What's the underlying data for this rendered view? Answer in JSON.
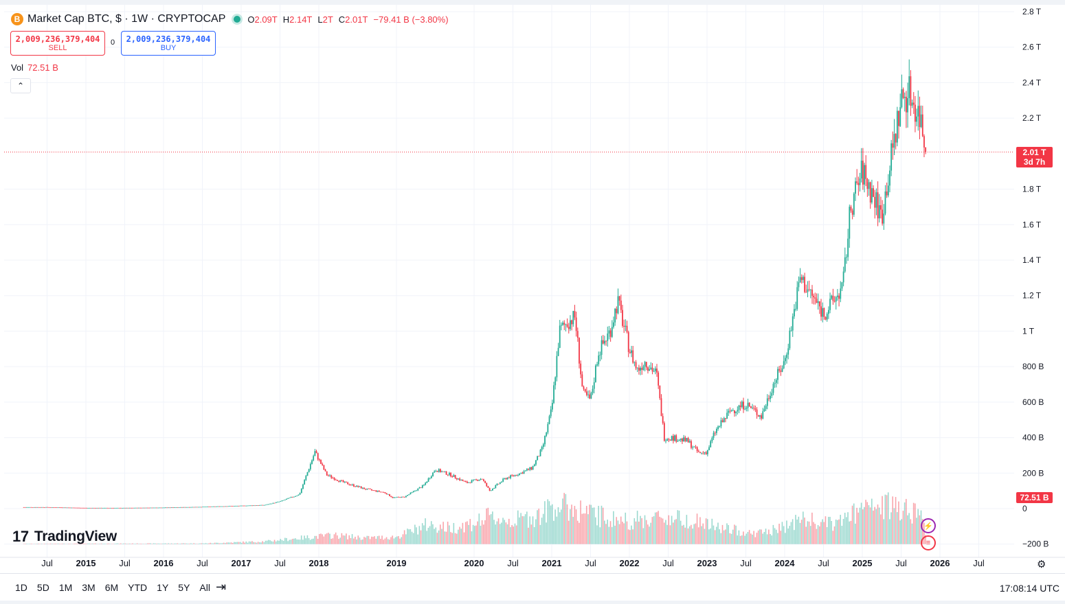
{
  "header": {
    "symbol": "Market Cap BTC, $ · 1W · CRYPTOCAP",
    "coin_glyph": "B",
    "ohlc": [
      {
        "k": "O",
        "v": "2.09T"
      },
      {
        "k": "H",
        "v": "2.14T"
      },
      {
        "k": "L",
        "v": "2T"
      },
      {
        "k": "C",
        "v": "2.01T"
      }
    ],
    "change": "−79.41 B (−3.80%)"
  },
  "trade": {
    "sell_price": "2,009,236,379,404",
    "sell_label": "SELL",
    "spread": "0",
    "buy_price": "2,009,236,379,404",
    "buy_label": "BUY"
  },
  "volume": {
    "label": "Vol",
    "value": "72.51 B"
  },
  "collapse_glyph": "⌃",
  "logo": {
    "mark": "17",
    "text": "TradingView"
  },
  "toolbar": {
    "ranges": [
      "1D",
      "5D",
      "1M",
      "3M",
      "6M",
      "YTD",
      "1Y",
      "5Y",
      "All"
    ],
    "calendar_glyph": "⇥",
    "time": "17:08:14 UTC",
    "settings_glyph": "⚙"
  },
  "price_tag": {
    "value": "2.01 T",
    "countdown": "3d 7h"
  },
  "volume_tag": "72.51 B",
  "colors": {
    "up": "#22ab94",
    "down": "#f23645",
    "grid": "#f0f3fa",
    "text": "#131722"
  },
  "chart_data": {
    "type": "candlestick",
    "interval": "1W",
    "y_axis_ticks": [
      "2.8 T",
      "2.6 T",
      "2.4 T",
      "2.2 T",
      "1.8 T",
      "1.6 T",
      "1.4 T",
      "1.2 T",
      "1 T",
      "800 B",
      "600 B",
      "400 B",
      "200 B",
      "0",
      "−200 B"
    ],
    "x_axis_ticks": [
      "Jul",
      "2015",
      "Jul",
      "2016",
      "Jul",
      "2017",
      "Jul",
      "2018",
      "2019",
      "2020",
      "Jul",
      "2021",
      "Jul",
      "2022",
      "Jul",
      "2023",
      "Jul",
      "2024",
      "Jul",
      "2025",
      "Jul",
      "2026",
      "Jul"
    ],
    "x_tick_dates": [
      2014.5,
      2015,
      2015.5,
      2016,
      2016.5,
      2017,
      2017.5,
      2018,
      2019,
      2020,
      2020.5,
      2021,
      2021.5,
      2022,
      2022.5,
      2023,
      2023.5,
      2024,
      2024.5,
      2025,
      2025.5,
      2026,
      2026.5
    ],
    "y_range_billions": [
      -250,
      2830
    ],
    "last_close_billions": 2009,
    "price_series": {
      "unit": "billion USD",
      "points": [
        [
          2014.2,
          8
        ],
        [
          2014.5,
          8
        ],
        [
          2015,
          4
        ],
        [
          2015.5,
          4
        ],
        [
          2016,
          6
        ],
        [
          2016.5,
          10
        ],
        [
          2017,
          16
        ],
        [
          2017.3,
          20
        ],
        [
          2017.5,
          40
        ],
        [
          2017.75,
          80
        ],
        [
          2017.95,
          320
        ],
        [
          2018.1,
          190
        ],
        [
          2018.3,
          150
        ],
        [
          2018.6,
          110
        ],
        [
          2018.85,
          90
        ],
        [
          2018.95,
          62
        ],
        [
          2019.1,
          65
        ],
        [
          2019.35,
          130
        ],
        [
          2019.5,
          220
        ],
        [
          2019.7,
          190
        ],
        [
          2019.9,
          145
        ],
        [
          2020.1,
          170
        ],
        [
          2020.2,
          100
        ],
        [
          2020.4,
          170
        ],
        [
          2020.6,
          200
        ],
        [
          2020.75,
          230
        ],
        [
          2020.88,
          340
        ],
        [
          2021,
          560
        ],
        [
          2021.1,
          1000
        ],
        [
          2021.2,
          1050
        ],
        [
          2021.3,
          1080
        ],
        [
          2021.4,
          650
        ],
        [
          2021.5,
          610
        ],
        [
          2021.6,
          880
        ],
        [
          2021.75,
          1000
        ],
        [
          2021.85,
          1170
        ],
        [
          2022,
          900
        ],
        [
          2022.1,
          780
        ],
        [
          2022.2,
          830
        ],
        [
          2022.35,
          760
        ],
        [
          2022.45,
          400
        ],
        [
          2022.55,
          400
        ],
        [
          2022.75,
          380
        ],
        [
          2022.9,
          310
        ],
        [
          2023,
          320
        ],
        [
          2023.1,
          430
        ],
        [
          2023.3,
          550
        ],
        [
          2023.5,
          590
        ],
        [
          2023.7,
          520
        ],
        [
          2023.85,
          700
        ],
        [
          2024,
          830
        ],
        [
          2024.2,
          1300
        ],
        [
          2024.35,
          1200
        ],
        [
          2024.5,
          1100
        ],
        [
          2024.6,
          1150
        ],
        [
          2024.75,
          1250
        ],
        [
          2024.85,
          1700
        ],
        [
          2025,
          1900
        ],
        [
          2025.1,
          1800
        ],
        [
          2025.25,
          1650
        ],
        [
          2025.4,
          2050
        ],
        [
          2025.5,
          2300
        ],
        [
          2025.6,
          2350
        ],
        [
          2025.75,
          2200
        ],
        [
          2025.82,
          2010
        ]
      ]
    },
    "volume_series": {
      "unit": "billion USD",
      "points": [
        [
          2014.2,
          2
        ],
        [
          2016.5,
          4
        ],
        [
          2017.3,
          15
        ],
        [
          2017.9,
          40
        ],
        [
          2018.2,
          50
        ],
        [
          2018.6,
          35
        ],
        [
          2019,
          40
        ],
        [
          2019.4,
          110
        ],
        [
          2019.7,
          90
        ],
        [
          2020,
          120
        ],
        [
          2020.2,
          150
        ],
        [
          2020.5,
          130
        ],
        [
          2020.9,
          170
        ],
        [
          2021,
          220
        ],
        [
          2021.3,
          200
        ],
        [
          2021.5,
          170
        ],
        [
          2021.8,
          140
        ],
        [
          2022,
          130
        ],
        [
          2022.4,
          150
        ],
        [
          2022.8,
          140
        ],
        [
          2023,
          110
        ],
        [
          2023.2,
          90
        ],
        [
          2023.6,
          60
        ],
        [
          2023.9,
          80
        ],
        [
          2024.2,
          140
        ],
        [
          2024.6,
          110
        ],
        [
          2024.85,
          160
        ],
        [
          2025,
          190
        ],
        [
          2025.3,
          210
        ],
        [
          2025.5,
          220
        ],
        [
          2025.75,
          170
        ],
        [
          2025.82,
          72.51
        ]
      ]
    }
  }
}
